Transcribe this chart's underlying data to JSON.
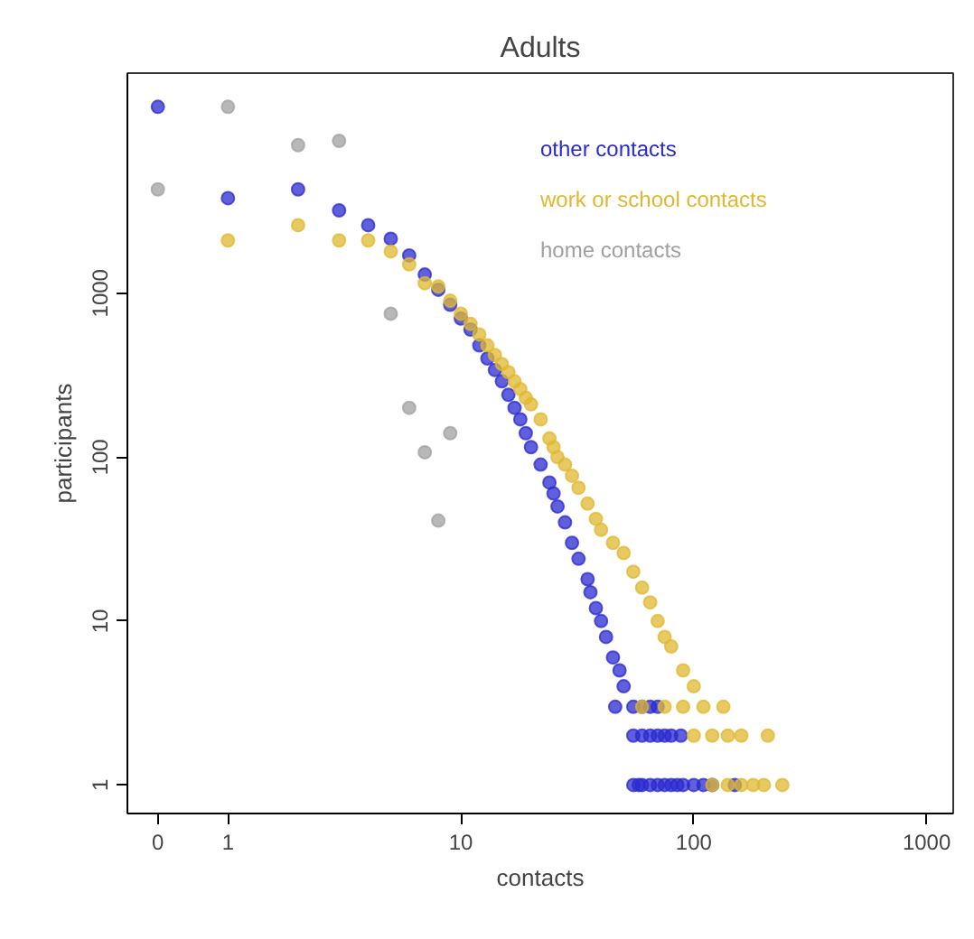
{
  "chart_data": {
    "type": "scatter",
    "title": "Adults",
    "xlabel": "contacts",
    "ylabel": "participants",
    "log": "xy",
    "grid": false,
    "legend": "top right",
    "marker": "circle",
    "xlim": [
      0.37,
      1300
    ],
    "ylim": [
      0.67,
      22000
    ],
    "xticks": [
      {
        "value": 0.5,
        "label": "0"
      },
      1,
      10,
      100,
      1000
    ],
    "yticks": [
      1,
      10,
      100,
      1000
    ],
    "series": [
      {
        "name": "other contacts",
        "color": "#2b2bd0",
        "x": [
          0.5,
          1,
          2,
          3,
          4,
          5,
          6,
          7,
          8,
          9,
          10,
          11,
          12,
          13,
          14,
          15,
          16,
          17,
          18,
          19,
          20,
          22,
          24,
          25,
          26,
          28,
          30,
          32,
          35,
          36,
          38,
          40,
          42,
          45,
          48,
          50,
          46,
          55,
          60,
          65,
          70,
          55,
          60,
          65,
          70,
          75,
          80,
          88,
          55,
          58,
          60,
          65,
          70,
          75,
          80,
          85,
          90,
          100,
          110,
          120,
          150
        ],
        "values": [
          13700,
          3800,
          4300,
          3200,
          2600,
          2150,
          1700,
          1300,
          1050,
          850,
          700,
          600,
          480,
          400,
          340,
          290,
          240,
          200,
          170,
          140,
          115,
          90,
          70,
          60,
          50,
          40,
          30,
          24,
          18,
          15,
          12,
          10,
          8,
          6,
          5,
          4,
          3,
          3,
          3,
          3,
          3,
          2,
          2,
          2,
          2,
          2,
          2,
          2,
          1,
          1,
          1,
          1,
          1,
          1,
          1,
          1,
          1,
          1,
          1,
          1,
          1
        ]
      },
      {
        "name": "work or school contacts",
        "color": "#e0b830",
        "x": [
          1,
          2,
          3,
          4,
          5,
          6,
          7,
          8,
          9,
          10,
          11,
          12,
          13,
          14,
          15,
          16,
          17,
          18,
          19,
          20,
          22,
          24,
          25,
          26,
          28,
          30,
          32,
          35,
          38,
          40,
          45,
          50,
          55,
          60,
          65,
          70,
          75,
          80,
          90,
          100,
          60,
          75,
          90,
          110,
          134,
          100,
          120,
          140,
          160,
          208,
          120,
          140,
          160,
          180,
          200,
          240
        ],
        "values": [
          2100,
          2600,
          2100,
          2100,
          1800,
          1500,
          1150,
          1100,
          900,
          750,
          650,
          560,
          480,
          420,
          370,
          330,
          290,
          260,
          230,
          210,
          170,
          130,
          115,
          100,
          90,
          77,
          65,
          52,
          42,
          36,
          30,
          26,
          20,
          16,
          13,
          10,
          8,
          7,
          5,
          4,
          3,
          3,
          3,
          3,
          3,
          2,
          2,
          2,
          2,
          2,
          1,
          1,
          1,
          1,
          1,
          1
        ]
      },
      {
        "name": "home contacts",
        "color": "#a0a0a0",
        "x": [
          0.5,
          1,
          2,
          3,
          5,
          6,
          7,
          8,
          9
        ],
        "values": [
          4300,
          13700,
          8000,
          8500,
          750,
          200,
          107,
          41,
          140
        ]
      }
    ]
  }
}
